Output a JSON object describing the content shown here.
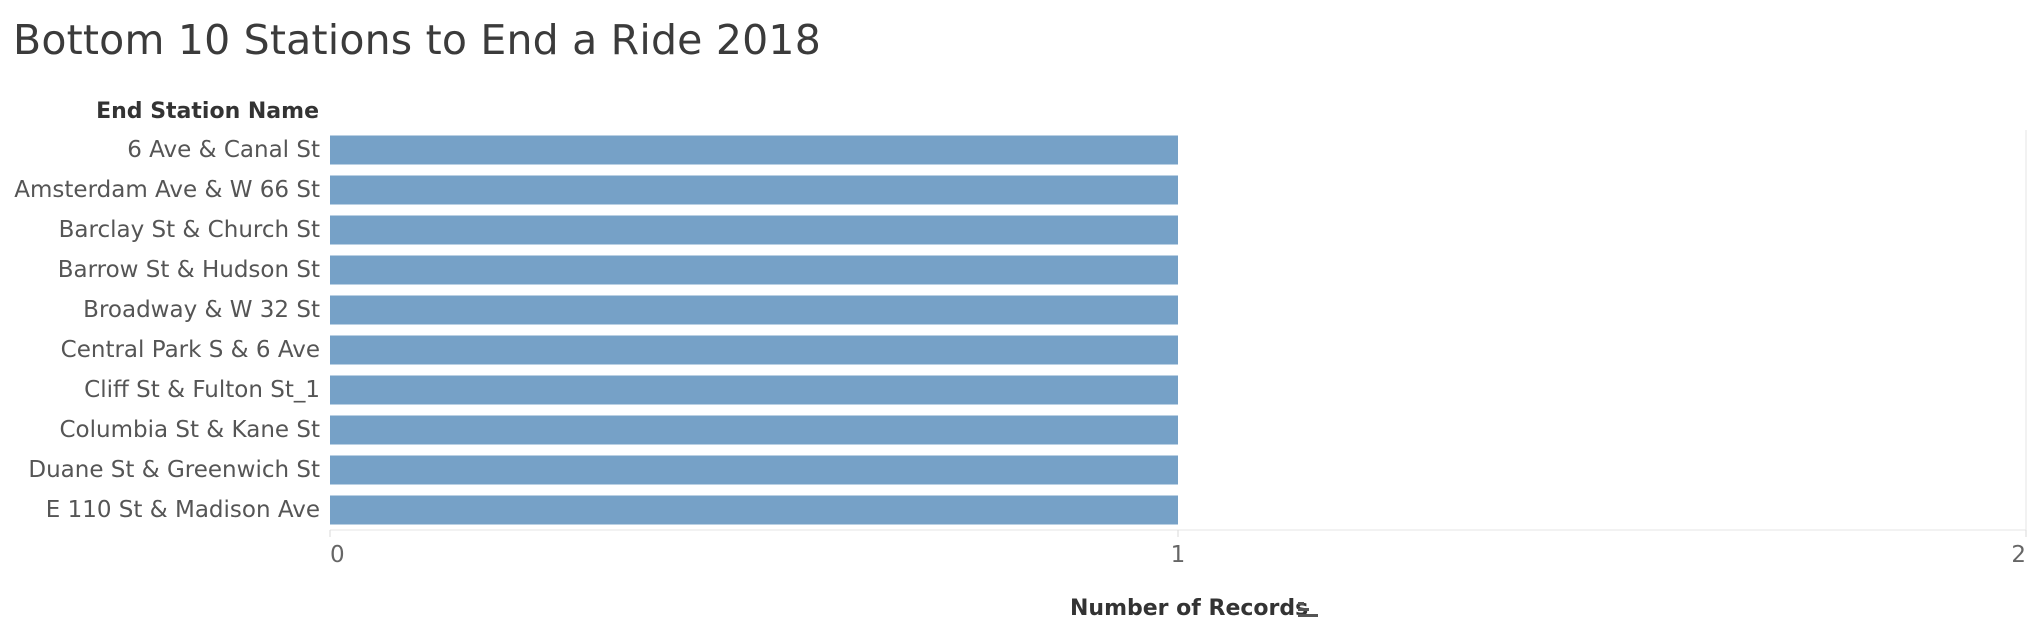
{
  "title": "Bottom 10 Stations to End a Ride 2018",
  "row_header": "End Station Name",
  "x_axis_title": "Number of Records",
  "sort_icon": "sort-descending-icon",
  "chart_data": {
    "type": "bar",
    "orientation": "horizontal",
    "title": "Bottom 10 Stations to End a Ride 2018",
    "xlabel": "Number of Records",
    "ylabel": "End Station Name",
    "xlim": [
      0,
      2
    ],
    "x_ticks": [
      "0",
      "1",
      "2"
    ],
    "grid": false,
    "bar_color": "#76a1c7",
    "categories": [
      "6 Ave & Canal St",
      "Amsterdam Ave & W 66 St",
      "Barclay St & Church St",
      "Barrow St & Hudson St",
      "Broadway & W 32 St",
      "Central Park S & 6 Ave",
      "Cliff St & Fulton St_1",
      "Columbia St & Kane St",
      "Duane St & Greenwich St",
      "E 110 St & Madison Ave"
    ],
    "values": [
      1,
      1,
      1,
      1,
      1,
      1,
      1,
      1,
      1,
      1
    ]
  }
}
